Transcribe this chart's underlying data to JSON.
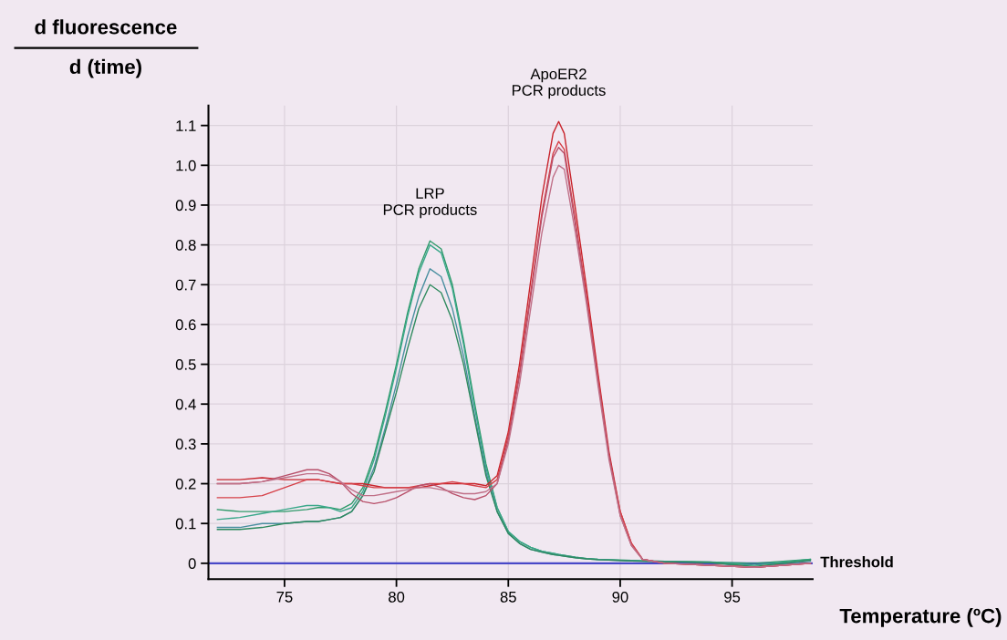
{
  "chart_data": {
    "type": "line",
    "xlabel": "Temperature (ºC)",
    "ylabel": "d fluorescence\nd (time)",
    "xlim": [
      71.6,
      98.6
    ],
    "xticks": [
      75,
      80,
      85,
      90,
      95
    ],
    "ylim": [
      -0.04,
      1.15
    ],
    "yticks": [
      0,
      0.1,
      0.2,
      0.3,
      0.4,
      0.5,
      0.6,
      0.7,
      0.8,
      0.9,
      {
        "value": 1,
        "label": "1.0"
      },
      1.1
    ],
    "grid": true,
    "marker": "none",
    "line_style": "solid",
    "x": [
      72,
      73,
      74,
      75,
      76,
      76.5,
      77,
      77.5,
      78,
      78.5,
      79,
      79.5,
      80,
      80.5,
      81,
      81.5,
      82,
      82.5,
      83,
      83.5,
      84,
      84.5,
      85,
      85.5,
      86,
      86.5,
      87,
      87.25,
      87.5,
      88,
      88.5,
      89,
      89.5,
      90,
      90.5,
      91,
      92,
      94,
      96,
      98.5
    ],
    "series": [
      {
        "color": "#2f9a6a",
        "values": [
          0.135,
          0.13,
          0.13,
          0.13,
          0.135,
          0.14,
          0.14,
          0.135,
          0.15,
          0.19,
          0.27,
          0.38,
          0.5,
          0.63,
          0.74,
          0.81,
          0.79,
          0.7,
          0.56,
          0.4,
          0.25,
          0.14,
          0.08,
          0.055,
          0.04,
          0.03,
          0.025,
          0.022,
          0.02,
          0.015,
          0.012,
          0.01,
          0.009,
          0.008,
          0.007,
          0.006,
          0.005,
          0.003,
          0.0,
          0.01
        ]
      },
      {
        "color": "#3aa88a",
        "values": [
          0.11,
          0.115,
          0.125,
          0.135,
          0.145,
          0.145,
          0.14,
          0.13,
          0.14,
          0.18,
          0.26,
          0.37,
          0.49,
          0.62,
          0.73,
          0.8,
          0.78,
          0.69,
          0.55,
          0.39,
          0.24,
          0.14,
          0.08,
          0.055,
          0.04,
          0.03,
          0.025,
          0.022,
          0.02,
          0.015,
          0.012,
          0.01,
          0.009,
          0.008,
          0.007,
          0.006,
          0.005,
          0.003,
          -0.005,
          0.01
        ]
      },
      {
        "color": "#4a8fa0",
        "values": [
          0.09,
          0.09,
          0.1,
          0.1,
          0.105,
          0.105,
          0.11,
          0.115,
          0.13,
          0.17,
          0.24,
          0.34,
          0.45,
          0.57,
          0.67,
          0.74,
          0.72,
          0.64,
          0.52,
          0.37,
          0.23,
          0.13,
          0.075,
          0.05,
          0.035,
          0.028,
          0.022,
          0.02,
          0.018,
          0.014,
          0.011,
          0.009,
          0.008,
          0.007,
          0.006,
          0.005,
          0.004,
          0.002,
          -0.01,
          0.005
        ]
      },
      {
        "color": "#2e8a5e",
        "values": [
          0.085,
          0.085,
          0.09,
          0.1,
          0.105,
          0.105,
          0.11,
          0.115,
          0.13,
          0.17,
          0.23,
          0.33,
          0.43,
          0.54,
          0.64,
          0.7,
          0.68,
          0.61,
          0.5,
          0.36,
          0.22,
          0.13,
          0.075,
          0.05,
          0.035,
          0.028,
          0.022,
          0.02,
          0.018,
          0.014,
          0.011,
          0.009,
          0.008,
          0.007,
          0.006,
          0.005,
          0.004,
          0.002,
          -0.008,
          0.008
        ]
      },
      {
        "color": "#c8242c",
        "values": [
          0.21,
          0.21,
          0.215,
          0.21,
          0.21,
          0.21,
          0.205,
          0.2,
          0.2,
          0.2,
          0.195,
          0.19,
          0.19,
          0.19,
          0.19,
          0.195,
          0.2,
          0.2,
          0.2,
          0.2,
          0.195,
          0.22,
          0.33,
          0.5,
          0.71,
          0.92,
          1.08,
          1.11,
          1.08,
          0.89,
          0.69,
          0.48,
          0.28,
          0.13,
          0.05,
          0.01,
          0.0,
          -0.005,
          -0.01,
          0.0
        ]
      },
      {
        "color": "#d64048",
        "values": [
          0.165,
          0.165,
          0.17,
          0.19,
          0.21,
          0.21,
          0.205,
          0.2,
          0.2,
          0.195,
          0.19,
          0.19,
          0.19,
          0.19,
          0.195,
          0.2,
          0.2,
          0.205,
          0.2,
          0.195,
          0.19,
          0.21,
          0.32,
          0.48,
          0.68,
          0.88,
          1.03,
          1.06,
          1.04,
          0.86,
          0.67,
          0.47,
          0.27,
          0.13,
          0.05,
          0.01,
          0.0,
          -0.005,
          -0.01,
          0.0
        ]
      },
      {
        "color": "#b8506a",
        "values": [
          0.2,
          0.2,
          0.205,
          0.22,
          0.235,
          0.235,
          0.225,
          0.205,
          0.175,
          0.155,
          0.15,
          0.155,
          0.165,
          0.18,
          0.195,
          0.2,
          0.19,
          0.175,
          0.165,
          0.16,
          0.17,
          0.2,
          0.31,
          0.47,
          0.67,
          0.87,
          1.02,
          1.045,
          1.03,
          0.85,
          0.66,
          0.46,
          0.27,
          0.12,
          0.045,
          0.01,
          0.0,
          -0.005,
          -0.01,
          0.0
        ]
      },
      {
        "color": "#c07088",
        "values": [
          0.2,
          0.2,
          0.205,
          0.215,
          0.225,
          0.225,
          0.22,
          0.205,
          0.185,
          0.17,
          0.17,
          0.175,
          0.18,
          0.185,
          0.19,
          0.19,
          0.185,
          0.18,
          0.175,
          0.175,
          0.18,
          0.2,
          0.3,
          0.45,
          0.64,
          0.83,
          0.97,
          1.0,
          0.99,
          0.83,
          0.65,
          0.45,
          0.26,
          0.12,
          0.045,
          0.01,
          0.0,
          -0.005,
          -0.01,
          0.0
        ]
      }
    ],
    "ref_lines": [
      {
        "axis": "y",
        "value": 0,
        "label": "Threshold",
        "color": "#4848c8"
      }
    ],
    "annotations": [
      {
        "text": "LRP\nPCR products",
        "x": 81.5,
        "y": 0.81
      },
      {
        "text": "ApoER2\nPCR products",
        "x": 87.25,
        "y": 1.11
      }
    ]
  }
}
